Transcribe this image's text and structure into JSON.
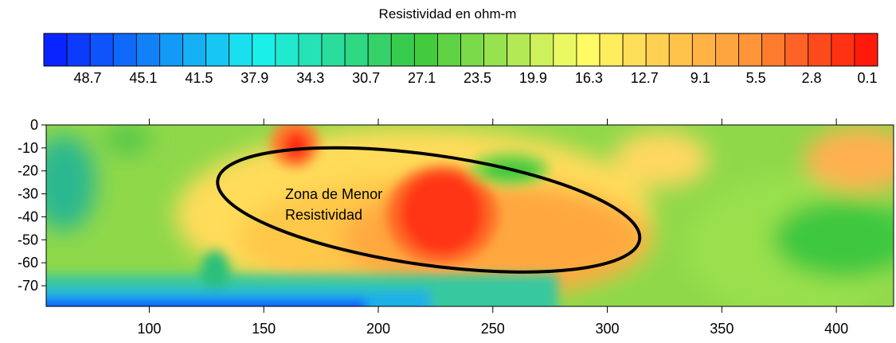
{
  "chart_data": {
    "type": "heatmap",
    "title": "",
    "colorbar": {
      "title": "Resistividad en ohm-m",
      "labels": [
        "48.7",
        "45.1",
        "41.5",
        "37.9",
        "34.3",
        "30.7",
        "27.1",
        "23.5",
        "19.9",
        "16.3",
        "12.7",
        "9.1",
        "5.5",
        "2.8",
        "0.1"
      ],
      "levels_count": 36,
      "color_low_resistivity": "#ff1a0a",
      "color_mid": "#ffff66",
      "color_high_resistivity": "#0a24ff"
    },
    "x_axis": {
      "ticks": [
        100,
        150,
        200,
        250,
        300,
        350,
        400
      ],
      "range": [
        55,
        425
      ],
      "label": ""
    },
    "y_axis": {
      "ticks": [
        0,
        -10,
        -20,
        -30,
        -40,
        -50,
        -60,
        -70
      ],
      "range": [
        -79,
        0
      ],
      "label": ""
    },
    "annotation": {
      "lines": [
        "Zona de Menor",
        "Resistividad"
      ],
      "shape": "ellipse",
      "center": [
        222,
        -37
      ],
      "semi_axis_x": 93,
      "semi_axis_y": 24,
      "rotation_deg": -8
    },
    "zones": [
      {
        "center": [
          225,
          -40
        ],
        "resistivity": 2,
        "description": "core"
      },
      {
        "center": [
          164,
          -8
        ],
        "resistivity": 2
      },
      {
        "center": [
          262,
          -19
        ],
        "resistivity": 30
      },
      {
        "center": [
          400,
          -52
        ],
        "resistivity": 30
      },
      {
        "center": [
          65,
          -25
        ],
        "resistivity": 36
      },
      {
        "center": [
          100,
          -78
        ],
        "resistivity": 48
      }
    ]
  }
}
